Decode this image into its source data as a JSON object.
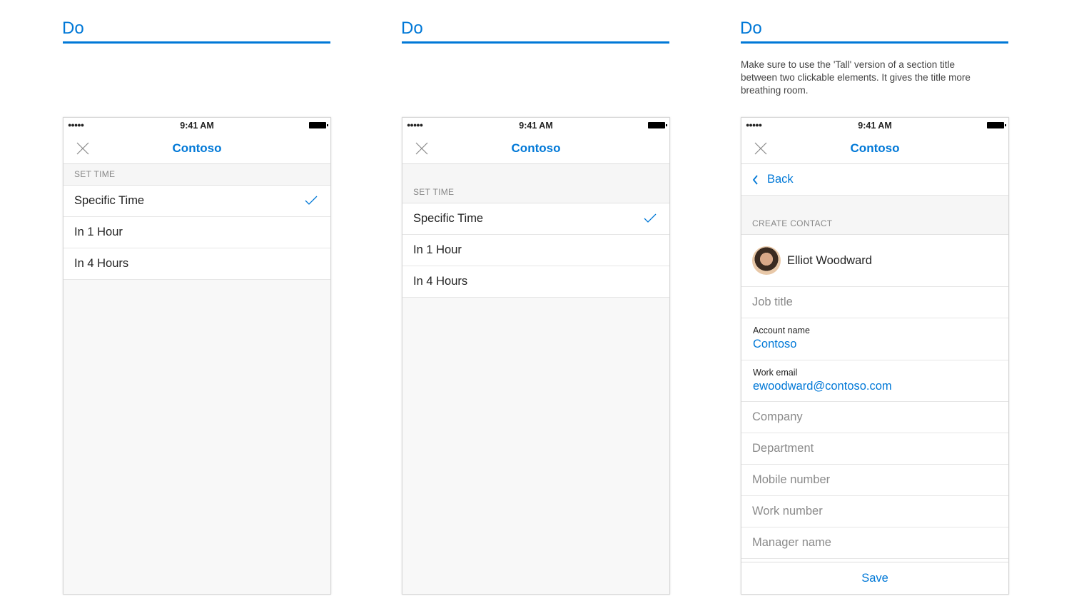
{
  "columns": [
    {
      "heading": "Do",
      "description": ""
    },
    {
      "heading": "Do",
      "description": ""
    },
    {
      "heading": "Do",
      "description": "Make sure to use the 'Tall' version of a section title between two clickable elements. It gives the title more breathing room."
    }
  ],
  "status": {
    "time": "9:41 AM",
    "signal": "●●●●●",
    "wifi": "ᯤ"
  },
  "nav": {
    "title": "Contoso"
  },
  "set_time": {
    "header": "SET TIME",
    "items": [
      "Specific Time",
      "In 1 Hour",
      "In 4 Hours"
    ],
    "selected": "Specific Time"
  },
  "contact": {
    "back": "Back",
    "header": "CREATE CONTACT",
    "name": "Elliot Woodward",
    "job_title": "Job title",
    "account_label": "Account name",
    "account_value": "Contoso",
    "email_label": "Work email",
    "email_value": "ewoodward@contoso.com",
    "placeholders": [
      "Company",
      "Department",
      "Mobile number",
      "Work number",
      "Manager name"
    ],
    "save": "Save"
  },
  "colors": {
    "accent": "#0078d7"
  }
}
